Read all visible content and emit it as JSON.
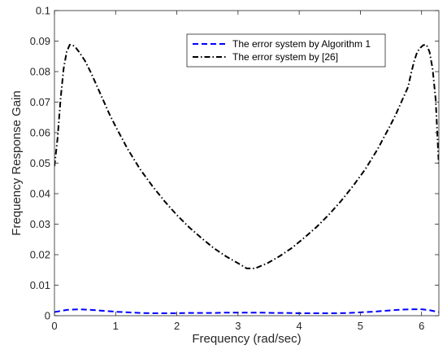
{
  "chart_data": {
    "type": "line",
    "title": "",
    "xlabel": "Frequency (rad/sec)",
    "ylabel": "Frequency Response Gain",
    "xlim": [
      0,
      6.283
    ],
    "ylim": [
      0,
      0.1
    ],
    "xticks": [
      0,
      1,
      2,
      3,
      4,
      5,
      6
    ],
    "xtick_labels": [
      "0",
      "1",
      "2",
      "3",
      "4",
      "5",
      "6"
    ],
    "yticks": [
      0,
      0.01,
      0.02,
      0.03,
      0.04,
      0.05,
      0.06,
      0.07,
      0.08,
      0.09,
      0.1
    ],
    "ytick_labels": [
      "0",
      "0.01",
      "0.02",
      "0.03",
      "0.04",
      "0.05",
      "0.06",
      "0.07",
      "0.08",
      "0.09",
      "0.1"
    ],
    "grid": false,
    "legend_position": "top-right",
    "series": [
      {
        "name": "The error system by Algorithm 1",
        "color": "#0000ff",
        "dash": "dashed",
        "x": [
          0,
          0.2,
          0.4,
          0.6,
          0.8,
          1.0,
          1.2,
          1.4,
          1.6,
          1.8,
          2.0,
          2.2,
          2.4,
          2.6,
          2.8,
          3.0,
          3.2,
          3.4,
          3.6,
          3.8,
          4.0,
          4.2,
          4.4,
          4.6,
          4.8,
          5.0,
          5.2,
          5.4,
          5.6,
          5.8,
          6.0,
          6.1,
          6.283
        ],
        "y": [
          0.0012,
          0.0019,
          0.0021,
          0.0019,
          0.0016,
          0.0013,
          0.0011,
          0.0009,
          0.0008,
          0.0008,
          0.0008,
          0.0009,
          0.0009,
          0.0009,
          0.001,
          0.001,
          0.001,
          0.001,
          0.0009,
          0.0009,
          0.0008,
          0.0008,
          0.0008,
          0.0008,
          0.0009,
          0.0011,
          0.0013,
          0.0016,
          0.0019,
          0.0021,
          0.0021,
          0.0019,
          0.0012
        ]
      },
      {
        "name": "The error system by [26]",
        "color": "#000000",
        "dash": "dashdot",
        "x": [
          0,
          0.05,
          0.1,
          0.15,
          0.2,
          0.25,
          0.3,
          0.35,
          0.4,
          0.5,
          0.6,
          0.7,
          0.8,
          0.9,
          1.0,
          1.2,
          1.4,
          1.6,
          1.8,
          2.0,
          2.2,
          2.4,
          2.6,
          2.8,
          3.0,
          3.1416,
          3.28,
          3.48,
          3.68,
          3.88,
          4.08,
          4.28,
          4.48,
          4.68,
          4.88,
          5.08,
          5.28,
          5.38,
          5.48,
          5.58,
          5.68,
          5.78,
          5.83,
          5.88,
          5.93,
          5.98,
          6.03,
          6.08,
          6.13,
          6.18,
          6.23,
          6.283
        ],
        "y": [
          0.049,
          0.058,
          0.071,
          0.081,
          0.0865,
          0.0888,
          0.0887,
          0.0878,
          0.0865,
          0.0835,
          0.0795,
          0.075,
          0.0705,
          0.066,
          0.062,
          0.0545,
          0.048,
          0.0425,
          0.0375,
          0.033,
          0.029,
          0.0255,
          0.0222,
          0.0195,
          0.0172,
          0.0155,
          0.0155,
          0.0172,
          0.0195,
          0.0222,
          0.0255,
          0.029,
          0.033,
          0.0375,
          0.0425,
          0.048,
          0.0545,
          0.0583,
          0.062,
          0.066,
          0.0705,
          0.075,
          0.0795,
          0.0835,
          0.0865,
          0.0878,
          0.0887,
          0.0888,
          0.0865,
          0.081,
          0.071,
          0.049
        ]
      }
    ]
  }
}
